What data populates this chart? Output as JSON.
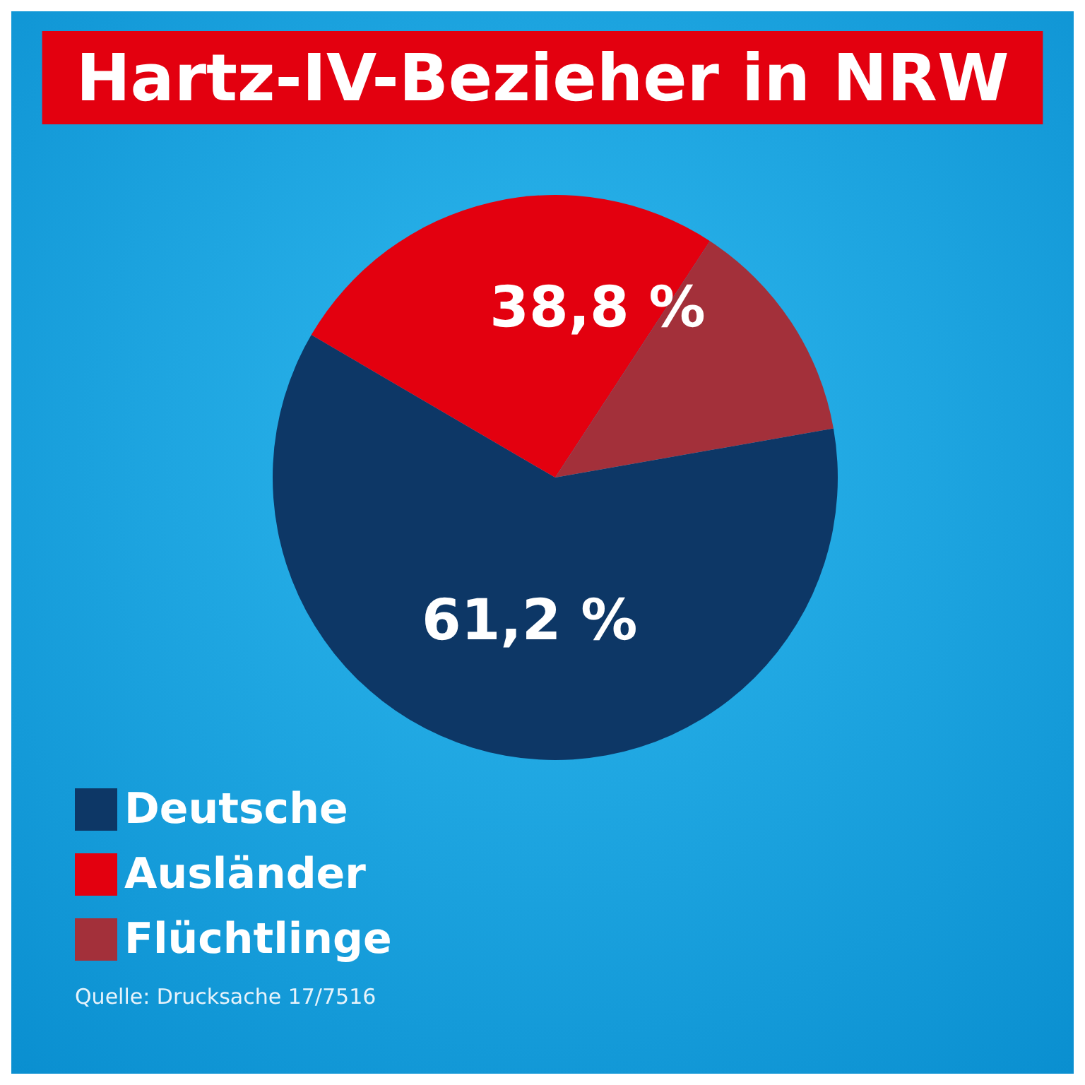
{
  "chart_data": {
    "type": "pie",
    "title": "Hartz-IV-Bezieher in NRW",
    "categories": [
      "Deutsche",
      "Ausländer",
      "Flüchtlinge"
    ],
    "colors": [
      "#0d3766",
      "#e3000f",
      "#a3303a"
    ],
    "values": [
      61.2,
      25.8,
      13
    ],
    "value_labels": [
      "61,2 %",
      null,
      null
    ],
    "legend": "bottom left",
    "annotations": [
      "38,8 %",
      "Quelle: Drucksache 17/7516"
    ]
  }
}
